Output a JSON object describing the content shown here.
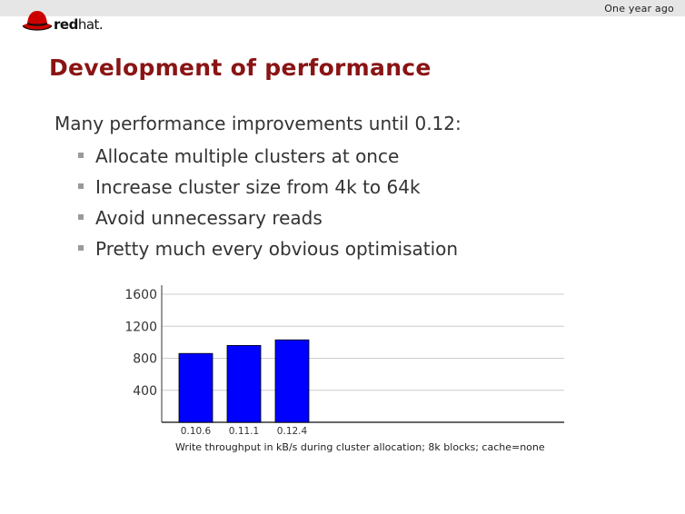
{
  "header": {
    "section_label": "One year ago",
    "logo": {
      "icon": "redhat-hat-icon",
      "brand_bold": "red",
      "brand_regular": "hat."
    }
  },
  "slide": {
    "title": "Development of performance",
    "intro": "Many performance improvements until 0.12:",
    "bullets": [
      "Allocate multiple clusters at once",
      "Increase cluster size from 4k to 64k",
      "Avoid unnecessary reads",
      "Pretty much every obvious optimisation"
    ]
  },
  "colors": {
    "title": "#8a1414",
    "bar": "#0000ff",
    "logo_red": "#cc0000"
  },
  "chart_data": {
    "type": "bar",
    "categories": [
      "0.10.6",
      "0.11.1",
      "0.12.4"
    ],
    "values": [
      860,
      960,
      1030
    ],
    "ylim": [
      0,
      1600
    ],
    "yticks": [
      "400",
      "800",
      "1200",
      "1600"
    ],
    "grid": true,
    "caption": "Write throughput in kB/s during cluster allocation; 8k blocks; cache=none"
  }
}
